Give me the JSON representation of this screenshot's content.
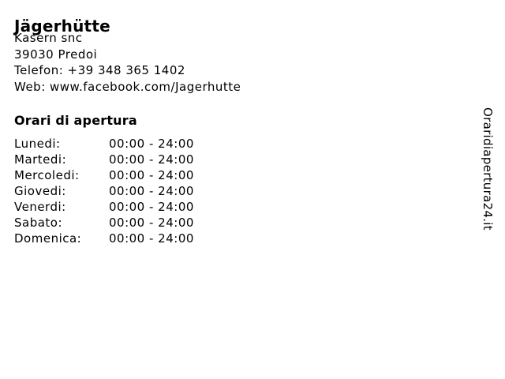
{
  "page": {
    "background": "#ffffff",
    "text_color": "#000000"
  },
  "business": {
    "name": "Jägerhütte",
    "address": "Kasern snc",
    "city": "39030 Predoi",
    "phone": "Telefon: +39 348 365 1402",
    "web": "Web: www.facebook.com/Jagerhutte"
  },
  "hours": {
    "heading": "Orari di apertura",
    "rows": [
      {
        "day": "Lunedi:",
        "time": "00:00 - 24:00"
      },
      {
        "day": "Martedi:",
        "time": "00:00 - 24:00"
      },
      {
        "day": "Mercoledi:",
        "time": "00:00 - 24:00"
      },
      {
        "day": "Giovedi:",
        "time": "00:00 - 24:00"
      },
      {
        "day": "Venerdi:",
        "time": "00:00 - 24:00"
      },
      {
        "day": "Sabato:",
        "time": "00:00 - 24:00"
      },
      {
        "day": "Domenica:",
        "time": "00:00 - 24:00"
      }
    ]
  },
  "watermark": {
    "text": "Oraridiapertura24.it"
  }
}
